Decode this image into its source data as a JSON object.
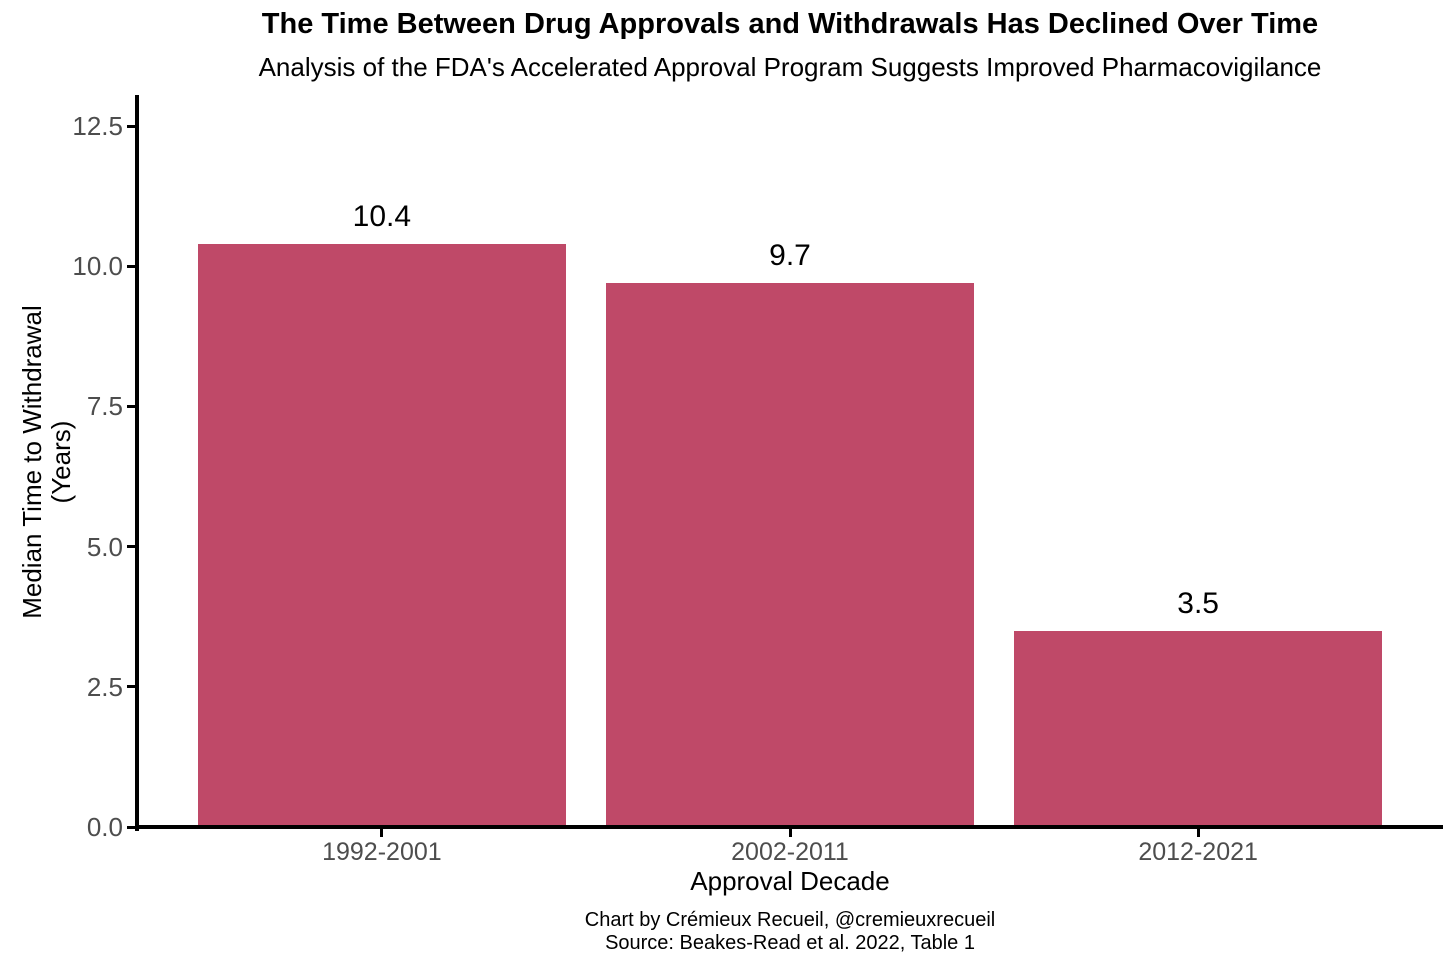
{
  "chart_data": {
    "type": "bar",
    "title": "The Time Between Drug Approvals and Withdrawals Has Declined Over Time",
    "subtitle": "Analysis of the FDA's Accelerated Approval Program Suggests Improved Pharmacovigilance",
    "categories": [
      "1992-2001",
      "2002-2011",
      "2012-2021"
    ],
    "values": [
      10.4,
      9.7,
      3.5
    ],
    "bar_labels": [
      "10.4",
      "9.7",
      "3.5"
    ],
    "xlabel": "Approval Decade",
    "ylabel": "Median Time to Withdrawal\n(Years)",
    "ylim": [
      0,
      12.5
    ],
    "yticks": [
      0,
      2.5,
      5,
      7.5,
      10,
      12.5
    ],
    "ytick_labels": [
      "0.0",
      "2.5",
      "5.0",
      "7.5",
      "10.0",
      "12.5"
    ],
    "bar_color": "#BF4968",
    "axis_color": "#000000",
    "tick_label_color": "#4D4D4D",
    "grid": false,
    "legend_position": "none",
    "caption_line1": "Chart by Crémieux Recueil, @cremieuxrecueil",
    "caption_line2": "Source: Beakes-Read et al. 2022, Table 1"
  }
}
